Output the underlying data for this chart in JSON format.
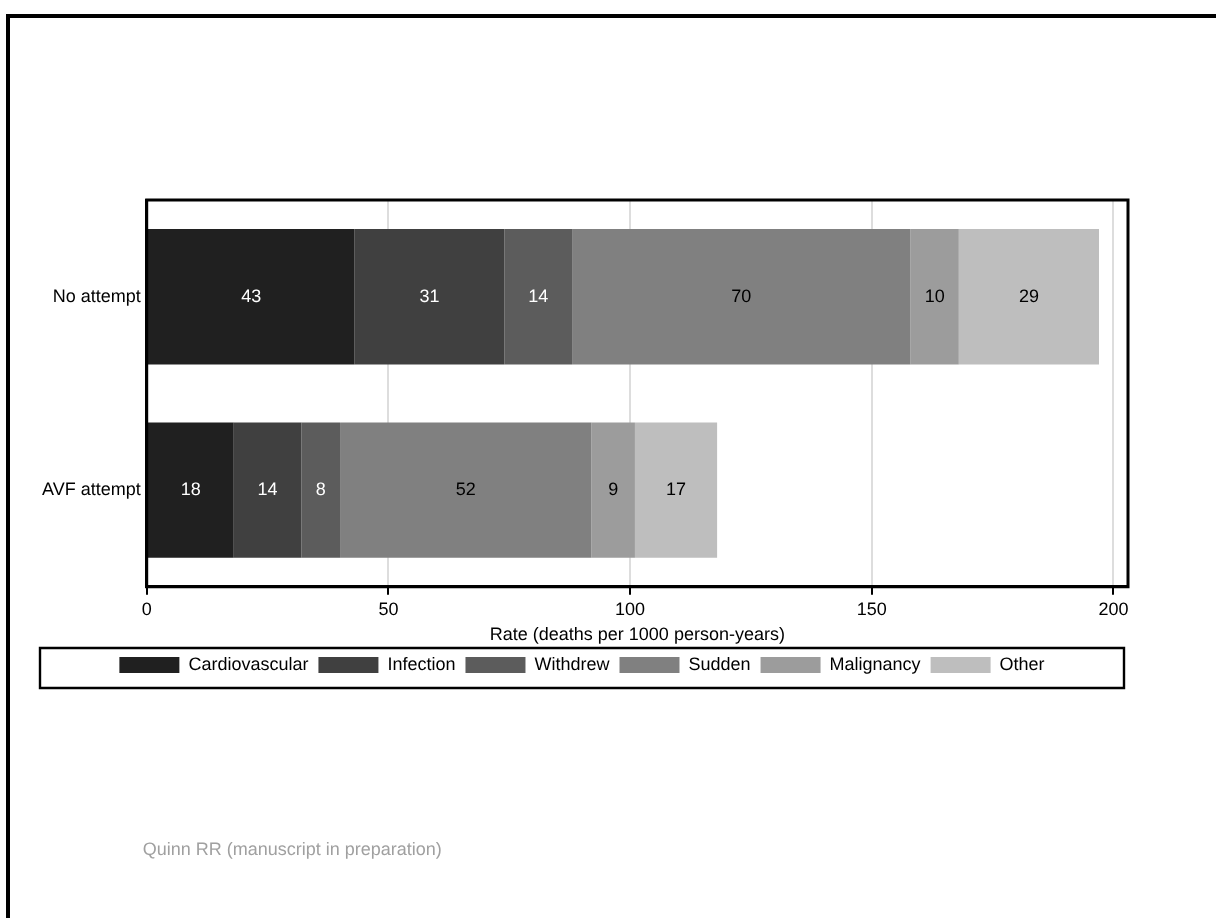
{
  "chart_data": {
    "type": "bar",
    "orientation": "horizontal",
    "stacked": true,
    "xlabel": "Rate (deaths per 1000 person-years)",
    "categories": [
      "No attempt",
      "AVF attempt"
    ],
    "series": [
      {
        "name": "Cardiovascular",
        "color": "#202020",
        "values": [
          43,
          18
        ]
      },
      {
        "name": "Infection",
        "color": "#404040",
        "values": [
          31,
          14
        ]
      },
      {
        "name": "Withdrew",
        "color": "#5c5c5c",
        "values": [
          14,
          8
        ]
      },
      {
        "name": "Sudden",
        "color": "#808080",
        "values": [
          70,
          52
        ]
      },
      {
        "name": "Malignancy",
        "color": "#9c9c9c",
        "values": [
          10,
          9
        ]
      },
      {
        "name": "Other",
        "color": "#bebebe",
        "values": [
          29,
          17
        ]
      }
    ],
    "xlim": [
      0,
      203
    ],
    "xticks": [
      0,
      50,
      100,
      150,
      200
    ],
    "grid": "x",
    "legend": "bottom",
    "data_labels": true,
    "annotations": [
      "Quinn RR (manuscript in preparation)"
    ]
  }
}
